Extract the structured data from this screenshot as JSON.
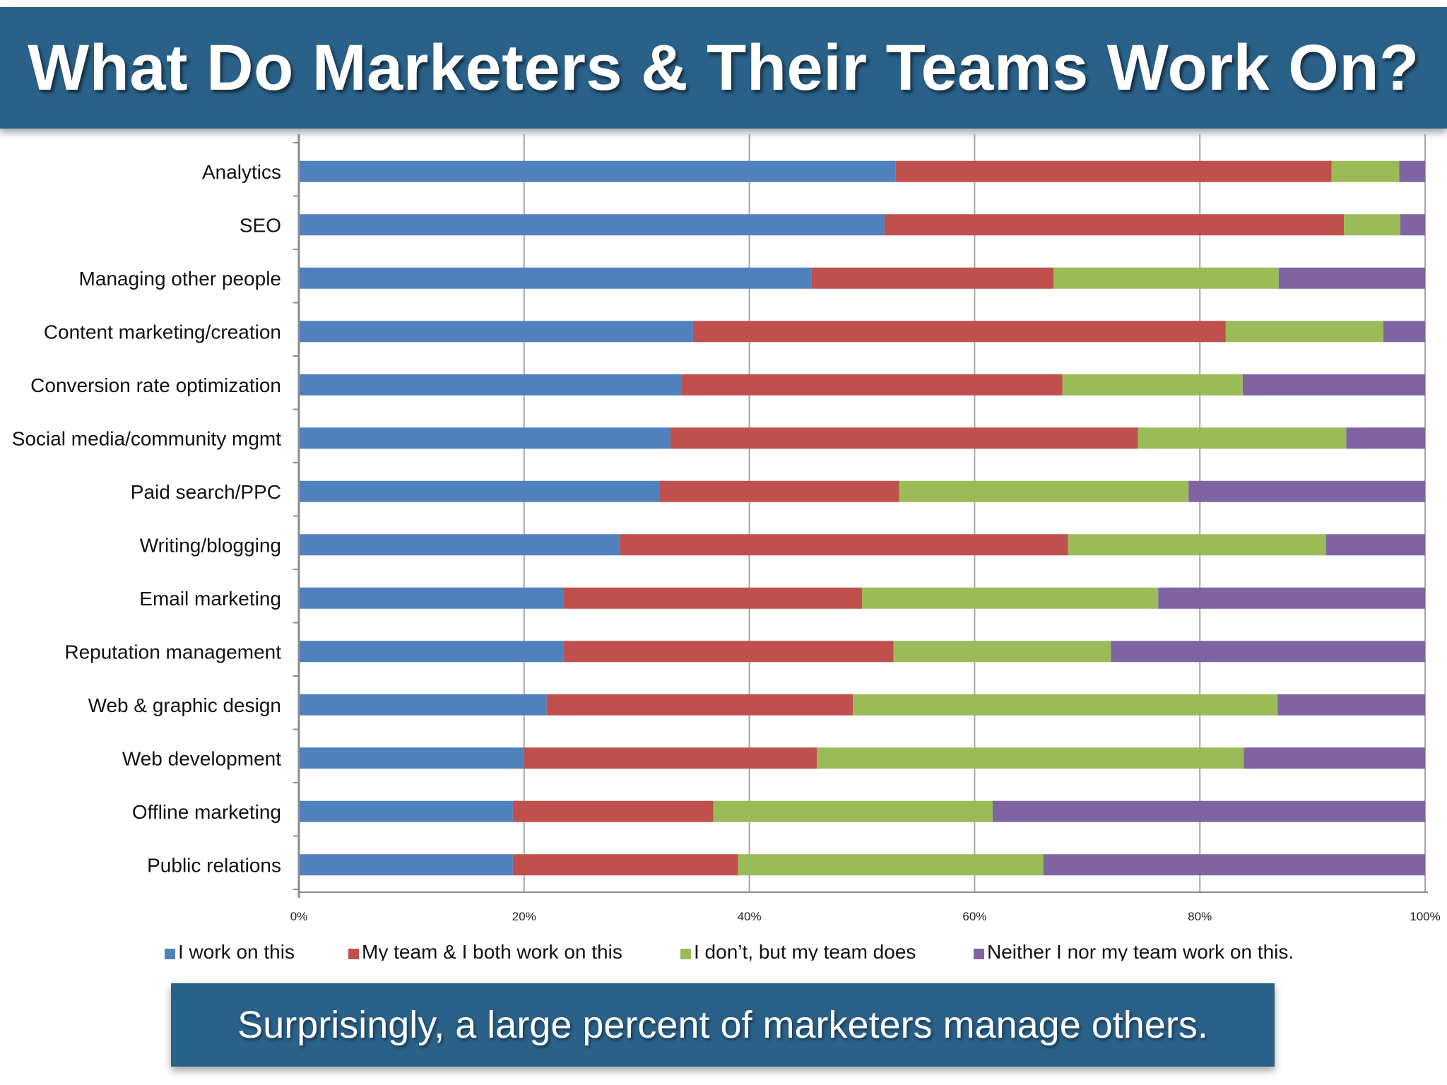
{
  "page": {
    "title": "What Do Marketers & Their Teams Work On?",
    "caption": "Surprisingly, a large percent of marketers manage others."
  },
  "chart_data": {
    "type": "bar",
    "orientation": "horizontal",
    "stacked": true,
    "categories": [
      "Analytics",
      "SEO",
      "Managing other people",
      "Content marketing/creation",
      "Conversion rate optimization",
      "Social media/community mgmt",
      "Paid search/PPC",
      "Writing/blogging",
      "Email marketing",
      "Reputation management",
      "Web & graphic design",
      "Web development",
      "Offline marketing",
      "Public relations"
    ],
    "series": [
      {
        "name": "I work on this",
        "color": "#4f81bd",
        "values": [
          53,
          52,
          45.5,
          35,
          34,
          33,
          32,
          28.5,
          23.5,
          23.5,
          22,
          20,
          19,
          19
        ]
      },
      {
        "name": "My team & I both work on this",
        "color": "#c0504d",
        "values": [
          38.7,
          40.8,
          21.5,
          47.3,
          33.8,
          41.5,
          21.3,
          39.8,
          26.5,
          29.3,
          27.2,
          26,
          17.8,
          20
        ]
      },
      {
        "name": "I don’t, but my team does",
        "color": "#9bbb59",
        "values": [
          6,
          5,
          20,
          14,
          16,
          18.5,
          25.7,
          22.9,
          26.3,
          19.3,
          37.7,
          37.9,
          24.8,
          27.1
        ]
      },
      {
        "name": "Neither I nor my team work on this.",
        "color": "#8064a2",
        "values": [
          2.3,
          2.2,
          13,
          3.7,
          16.2,
          7,
          21,
          8.8,
          23.7,
          27.9,
          13.1,
          16.1,
          38.4,
          33.9
        ]
      }
    ],
    "x_ticks": [
      "0%",
      "20%",
      "40%",
      "60%",
      "80%",
      "100%"
    ],
    "xlim": [
      0,
      100
    ],
    "grid": "vertical",
    "legend_position": "bottom"
  }
}
